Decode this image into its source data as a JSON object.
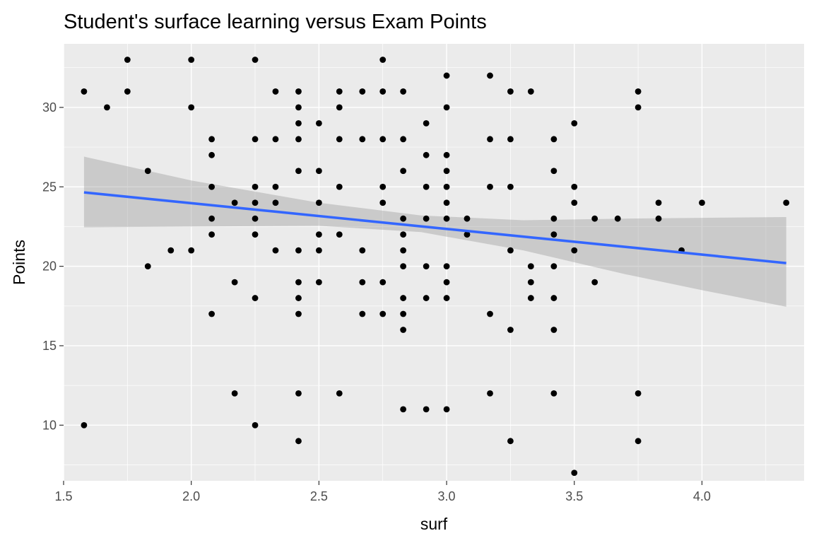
{
  "chart_data": {
    "type": "scatter",
    "title": "Student's surface learning versus Exam Points",
    "xlabel": "surf",
    "ylabel": "Points",
    "xlim": [
      1.5,
      4.4
    ],
    "ylim": [
      6.5,
      34.0
    ],
    "x_ticks": [
      1.5,
      2.0,
      2.5,
      3.0,
      3.5,
      4.0
    ],
    "x_tick_labels": [
      "1.5",
      "2.0",
      "2.5",
      "3.0",
      "3.5",
      "4.0"
    ],
    "y_ticks": [
      10,
      15,
      20,
      25,
      30
    ],
    "y_tick_labels": [
      "10",
      "15",
      "20",
      "25",
      "30"
    ],
    "grid": true,
    "legend": "none",
    "colors": {
      "panel": "#ebebeb",
      "grid": "#ffffff",
      "points": "#000000",
      "line": "#3366ff",
      "band": "#999999"
    },
    "points": [
      [
        1.58,
        31
      ],
      [
        1.58,
        10
      ],
      [
        1.67,
        30
      ],
      [
        1.75,
        33
      ],
      [
        1.75,
        31
      ],
      [
        1.83,
        26
      ],
      [
        1.83,
        20
      ],
      [
        1.92,
        21
      ],
      [
        2.0,
        33
      ],
      [
        2.0,
        30
      ],
      [
        2.0,
        21
      ],
      [
        2.08,
        28
      ],
      [
        2.08,
        27
      ],
      [
        2.08,
        25
      ],
      [
        2.08,
        23
      ],
      [
        2.08,
        22
      ],
      [
        2.08,
        17
      ],
      [
        2.17,
        24
      ],
      [
        2.17,
        19
      ],
      [
        2.17,
        12
      ],
      [
        2.25,
        33
      ],
      [
        2.25,
        28
      ],
      [
        2.25,
        25
      ],
      [
        2.25,
        24
      ],
      [
        2.25,
        23
      ],
      [
        2.25,
        22
      ],
      [
        2.25,
        18
      ],
      [
        2.25,
        10
      ],
      [
        2.33,
        31
      ],
      [
        2.33,
        28
      ],
      [
        2.33,
        25
      ],
      [
        2.33,
        24
      ],
      [
        2.33,
        21
      ],
      [
        2.42,
        31
      ],
      [
        2.42,
        30
      ],
      [
        2.42,
        29
      ],
      [
        2.42,
        28
      ],
      [
        2.42,
        26
      ],
      [
        2.42,
        21
      ],
      [
        2.42,
        19
      ],
      [
        2.42,
        18
      ],
      [
        2.42,
        17
      ],
      [
        2.42,
        12
      ],
      [
        2.42,
        9
      ],
      [
        2.5,
        29
      ],
      [
        2.5,
        26
      ],
      [
        2.5,
        24
      ],
      [
        2.5,
        22
      ],
      [
        2.5,
        21
      ],
      [
        2.5,
        19
      ],
      [
        2.58,
        31
      ],
      [
        2.58,
        30
      ],
      [
        2.58,
        28
      ],
      [
        2.58,
        25
      ],
      [
        2.58,
        22
      ],
      [
        2.58,
        12
      ],
      [
        2.67,
        31
      ],
      [
        2.67,
        28
      ],
      [
        2.67,
        21
      ],
      [
        2.67,
        19
      ],
      [
        2.67,
        17
      ],
      [
        2.75,
        33
      ],
      [
        2.75,
        31
      ],
      [
        2.75,
        28
      ],
      [
        2.75,
        25
      ],
      [
        2.75,
        24
      ],
      [
        2.75,
        19
      ],
      [
        2.75,
        17
      ],
      [
        2.83,
        31
      ],
      [
        2.83,
        28
      ],
      [
        2.83,
        26
      ],
      [
        2.83,
        23
      ],
      [
        2.83,
        22
      ],
      [
        2.83,
        21
      ],
      [
        2.83,
        20
      ],
      [
        2.83,
        18
      ],
      [
        2.83,
        17
      ],
      [
        2.83,
        16
      ],
      [
        2.83,
        11
      ],
      [
        2.92,
        29
      ],
      [
        2.92,
        27
      ],
      [
        2.92,
        25
      ],
      [
        2.92,
        23
      ],
      [
        2.92,
        20
      ],
      [
        2.92,
        18
      ],
      [
        2.92,
        11
      ],
      [
        3.0,
        32
      ],
      [
        3.0,
        30
      ],
      [
        3.0,
        27
      ],
      [
        3.0,
        26
      ],
      [
        3.0,
        25
      ],
      [
        3.0,
        24
      ],
      [
        3.0,
        23
      ],
      [
        3.0,
        20
      ],
      [
        3.0,
        19
      ],
      [
        3.0,
        18
      ],
      [
        3.0,
        11
      ],
      [
        3.08,
        23
      ],
      [
        3.08,
        22
      ],
      [
        3.17,
        32
      ],
      [
        3.17,
        28
      ],
      [
        3.17,
        25
      ],
      [
        3.17,
        17
      ],
      [
        3.17,
        12
      ],
      [
        3.25,
        31
      ],
      [
        3.25,
        28
      ],
      [
        3.25,
        25
      ],
      [
        3.25,
        21
      ],
      [
        3.25,
        16
      ],
      [
        3.25,
        9
      ],
      [
        3.33,
        31
      ],
      [
        3.33,
        20
      ],
      [
        3.33,
        19
      ],
      [
        3.33,
        18
      ],
      [
        3.42,
        28
      ],
      [
        3.42,
        26
      ],
      [
        3.42,
        23
      ],
      [
        3.42,
        22
      ],
      [
        3.42,
        20
      ],
      [
        3.42,
        18
      ],
      [
        3.42,
        16
      ],
      [
        3.42,
        12
      ],
      [
        3.5,
        29
      ],
      [
        3.5,
        25
      ],
      [
        3.5,
        24
      ],
      [
        3.5,
        21
      ],
      [
        3.5,
        7
      ],
      [
        3.58,
        23
      ],
      [
        3.58,
        19
      ],
      [
        3.67,
        23
      ],
      [
        3.75,
        31
      ],
      [
        3.75,
        30
      ],
      [
        3.75,
        12
      ],
      [
        3.75,
        9
      ],
      [
        3.83,
        24
      ],
      [
        3.83,
        23
      ],
      [
        3.92,
        21
      ],
      [
        4.0,
        24
      ],
      [
        4.33,
        24
      ]
    ],
    "fit_line": {
      "x": [
        1.58,
        4.33
      ],
      "y": [
        24.65,
        20.2
      ]
    },
    "confidence_band": {
      "x": [
        1.58,
        2.0,
        2.5,
        2.9,
        3.3,
        3.7,
        4.0,
        4.33
      ],
      "upper": [
        26.9,
        25.4,
        24.0,
        23.2,
        22.9,
        23.0,
        23.05,
        23.1
      ],
      "lower": [
        22.45,
        22.5,
        22.55,
        22.15,
        21.0,
        19.5,
        18.5,
        17.45
      ]
    }
  }
}
